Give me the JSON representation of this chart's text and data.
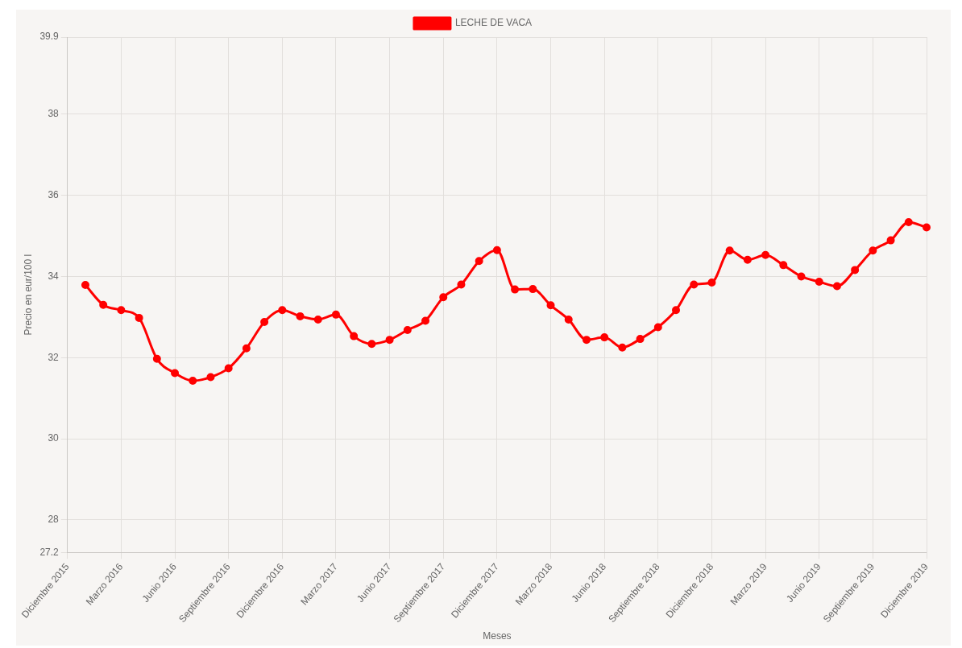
{
  "chart_data": {
    "type": "line",
    "xlabel": "Meses",
    "ylabel": "Precio en eur/100 l",
    "categories": [
      "Diciembre 2015",
      null,
      null,
      "Marzo 2016",
      null,
      null,
      "Junio 2016",
      null,
      null,
      "Septiembre 2016",
      null,
      null,
      "Diciembre 2016",
      null,
      null,
      "Marzo 2017",
      null,
      null,
      "Junio 2017",
      null,
      null,
      "Septiembre 2017",
      null,
      null,
      "Diciembre 2017",
      null,
      null,
      "Marzo 2018",
      null,
      null,
      "Junio 2018",
      null,
      null,
      "Septiembre 2018",
      null,
      null,
      "Diciembre 2018",
      null,
      null,
      "Marzo 2019",
      null,
      null,
      "Junio 2019",
      null,
      null,
      "Septiembre 2019",
      null,
      null,
      "Diciembre 2019"
    ],
    "series": [
      {
        "name": "LECHE DE VACA",
        "color": "#ff0000",
        "values": [
          null,
          33.79,
          33.3,
          33.17,
          32.98,
          31.97,
          31.62,
          31.43,
          31.52,
          31.74,
          32.23,
          32.88,
          33.17,
          33.02,
          32.94,
          33.06,
          32.53,
          32.34,
          32.44,
          32.68,
          32.91,
          33.49,
          33.8,
          34.38,
          34.65,
          33.68,
          33.69,
          33.29,
          32.94,
          32.44,
          32.5,
          32.25,
          32.46,
          32.75,
          33.17,
          33.8,
          33.85,
          34.64,
          34.41,
          34.53,
          34.28,
          34.0,
          33.87,
          33.76,
          34.16,
          34.64,
          34.89,
          35.34,
          35.21
        ]
      }
    ],
    "ylim": [
      27.2,
      39.9
    ],
    "yticks": [
      27.2,
      28,
      30,
      32,
      34,
      36,
      38,
      39.9
    ],
    "grid": true,
    "legend": "top",
    "marker": "circle",
    "line_style": "solid"
  }
}
